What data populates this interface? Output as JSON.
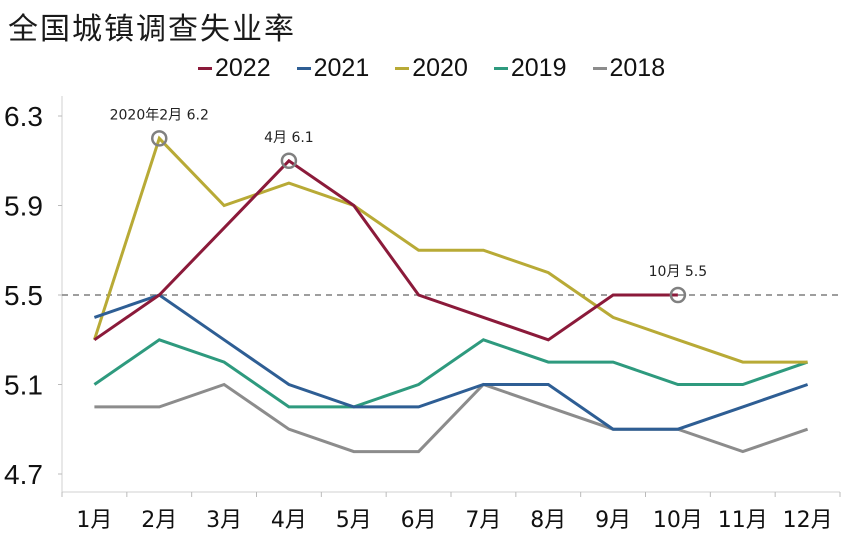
{
  "chart_data": {
    "type": "line",
    "title": "全国城镇调查失业率",
    "xlabel": "",
    "ylabel": "",
    "categories": [
      "1月",
      "2月",
      "3月",
      "4月",
      "5月",
      "6月",
      "7月",
      "8月",
      "9月",
      "10月",
      "11月",
      "12月"
    ],
    "ylim": [
      4.7,
      6.3
    ],
    "yticks": [
      "6.3",
      "5.9",
      "5.5",
      "5.1",
      "4.7"
    ],
    "ytick_values": [
      6.3,
      5.9,
      5.5,
      5.1,
      4.7
    ],
    "grid": false,
    "legend_position": "top",
    "reference_line": {
      "value": 5.5,
      "style": "dashed",
      "color": "#7f7f7f"
    },
    "series": [
      {
        "name": "2022",
        "color": "#8b1a3a",
        "values": [
          5.3,
          5.5,
          5.8,
          6.1,
          5.9,
          5.5,
          5.4,
          5.3,
          5.5,
          5.5,
          null,
          null
        ]
      },
      {
        "name": "2021",
        "color": "#2e5e94",
        "values": [
          5.4,
          5.5,
          5.3,
          5.1,
          5.0,
          5.0,
          5.1,
          5.1,
          4.9,
          4.9,
          5.0,
          5.1
        ]
      },
      {
        "name": "2020",
        "color": "#b8aa36",
        "values": [
          5.3,
          6.2,
          5.9,
          6.0,
          5.9,
          5.7,
          5.7,
          5.6,
          5.4,
          5.3,
          5.2,
          5.2
        ]
      },
      {
        "name": "2019",
        "color": "#2e9a7e",
        "values": [
          5.1,
          5.3,
          5.2,
          5.0,
          5.0,
          5.1,
          5.3,
          5.2,
          5.2,
          5.1,
          5.1,
          5.2
        ]
      },
      {
        "name": "2018",
        "color": "#8c8c8c",
        "values": [
          5.0,
          5.0,
          5.1,
          4.9,
          4.8,
          4.8,
          5.1,
          5.0,
          4.9,
          4.9,
          4.8,
          4.9
        ]
      }
    ],
    "annotations": [
      {
        "text": "2020年2月  6.2",
        "series": "2020",
        "month_index": 1,
        "value": 6.2
      },
      {
        "text": "4月  6.1",
        "series": "2022",
        "month_index": 3,
        "value": 6.1
      },
      {
        "text": "10月  5.5",
        "series": "2022",
        "month_index": 9,
        "value": 5.5
      }
    ]
  }
}
